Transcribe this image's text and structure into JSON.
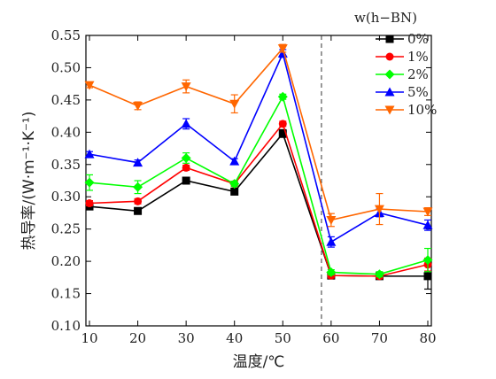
{
  "chart_data": {
    "type": "line",
    "xlabel": "温度/℃",
    "ylabel": "热导率/(W·m⁻¹·K⁻¹)",
    "legend_title": "w(h−BN)",
    "legend_position": "top-right",
    "x": [
      10,
      20,
      30,
      40,
      50,
      60,
      70,
      80
    ],
    "x_ticks": [
      "10",
      "20",
      "30",
      "40",
      "50",
      "60",
      "70",
      "80"
    ],
    "xlim": [
      10,
      80
    ],
    "ylim": [
      0.1,
      0.55
    ],
    "y_ticks": [
      "0.10",
      "0.15",
      "0.20",
      "0.25",
      "0.30",
      "0.35",
      "0.40",
      "0.45",
      "0.50",
      "0.55"
    ],
    "grid": false,
    "vertical_marker_x": 58,
    "series": [
      {
        "name": "0%",
        "color": "#000000",
        "marker": "square",
        "values": [
          0.285,
          0.278,
          0.325,
          0.308,
          0.398,
          0.178,
          0.177,
          0.177
        ],
        "errors": [
          0.004,
          0.004,
          0.004,
          0.004,
          0.006,
          0.004,
          0.004,
          0.02
        ]
      },
      {
        "name": "1%",
        "color": "#ff0000",
        "marker": "circle",
        "values": [
          0.29,
          0.293,
          0.345,
          0.32,
          0.413,
          0.178,
          0.177,
          0.195
        ],
        "errors": [
          0.004,
          0.004,
          0.004,
          0.004,
          0.004,
          0.004,
          0.004,
          0.01
        ]
      },
      {
        "name": "2%",
        "color": "#00ff00",
        "marker": "diamond",
        "values": [
          0.322,
          0.315,
          0.36,
          0.32,
          0.455,
          0.183,
          0.18,
          0.202
        ],
        "errors": [
          0.012,
          0.01,
          0.008,
          0.004,
          0.004,
          0.004,
          0.004,
          0.018
        ]
      },
      {
        "name": "5%",
        "color": "#0000ff",
        "marker": "triangle-up",
        "values": [
          0.366,
          0.353,
          0.413,
          0.355,
          0.522,
          0.23,
          0.275,
          0.256
        ],
        "errors": [
          0.004,
          0.004,
          0.008,
          0.004,
          0.006,
          0.008,
          0.006,
          0.008
        ]
      },
      {
        "name": "10%",
        "color": "#ff6600",
        "marker": "triangle-down",
        "values": [
          0.473,
          0.441,
          0.471,
          0.444,
          0.53,
          0.264,
          0.281,
          0.277
        ],
        "errors": [
          0.004,
          0.006,
          0.01,
          0.014,
          0.006,
          0.01,
          0.024,
          0.006
        ]
      }
    ]
  }
}
